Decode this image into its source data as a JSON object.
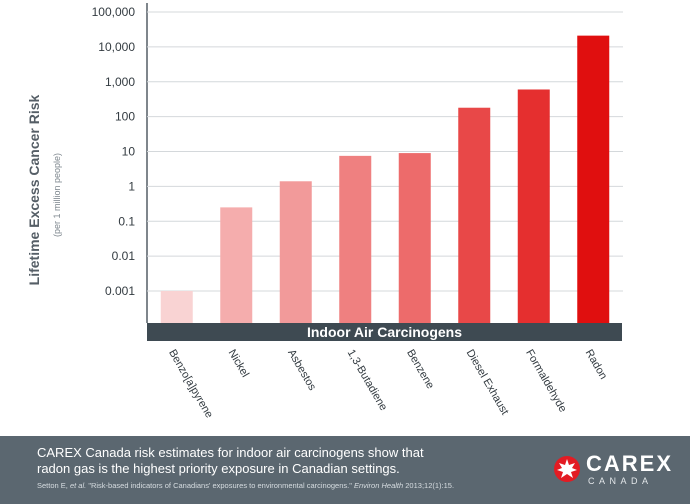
{
  "chart_data": {
    "type": "bar",
    "xlabel": "Indoor Air Carcinogens",
    "ylabel": "Lifetime Excess Cancer Risk",
    "ylabel_sub": "(per 1 million people)",
    "yscale": "log",
    "ylim": [
      0.0001,
      100000
    ],
    "yticks": [
      0.001,
      0.01,
      0.1,
      1,
      10,
      100,
      1000,
      10000,
      100000
    ],
    "ytick_labels": [
      "0.001",
      "0.01",
      "0.1",
      "1",
      "10",
      "100",
      "1,000",
      "10,000",
      "100,000"
    ],
    "grid": true,
    "categories": [
      "Benzo[a]pyrene",
      "Nickel",
      "Asbestos",
      "1,3-Butadiene",
      "Benzene",
      "Diesel Exhaust",
      "Formaldehyde",
      "Radon"
    ],
    "values": [
      0.001,
      0.25,
      1.4,
      7.5,
      9,
      180,
      600,
      21000
    ],
    "colors": [
      "#f9d3d3",
      "#f5adad",
      "#f29a9a",
      "#ef8080",
      "#ed6b6b",
      "#e84848",
      "#e52f2f",
      "#e00f0f"
    ]
  },
  "footer": {
    "caption": "CAREX Canada risk estimates for indoor air carcinogens show that radon gas is the highest priority exposure in Canadian settings.",
    "citation_authors": "Setton E,",
    "citation_etal": "et al.",
    "citation_title": "\"Risk-based indicators of Canadians' exposures to environmental carcinogens.\"",
    "citation_journal": "Environ Health",
    "citation_ref": "2013;12(1):15."
  },
  "logo": {
    "name": "CAREX",
    "sub": "CANADA",
    "mark_icon": "carex-leaf-icon",
    "color": "#e31b23"
  }
}
